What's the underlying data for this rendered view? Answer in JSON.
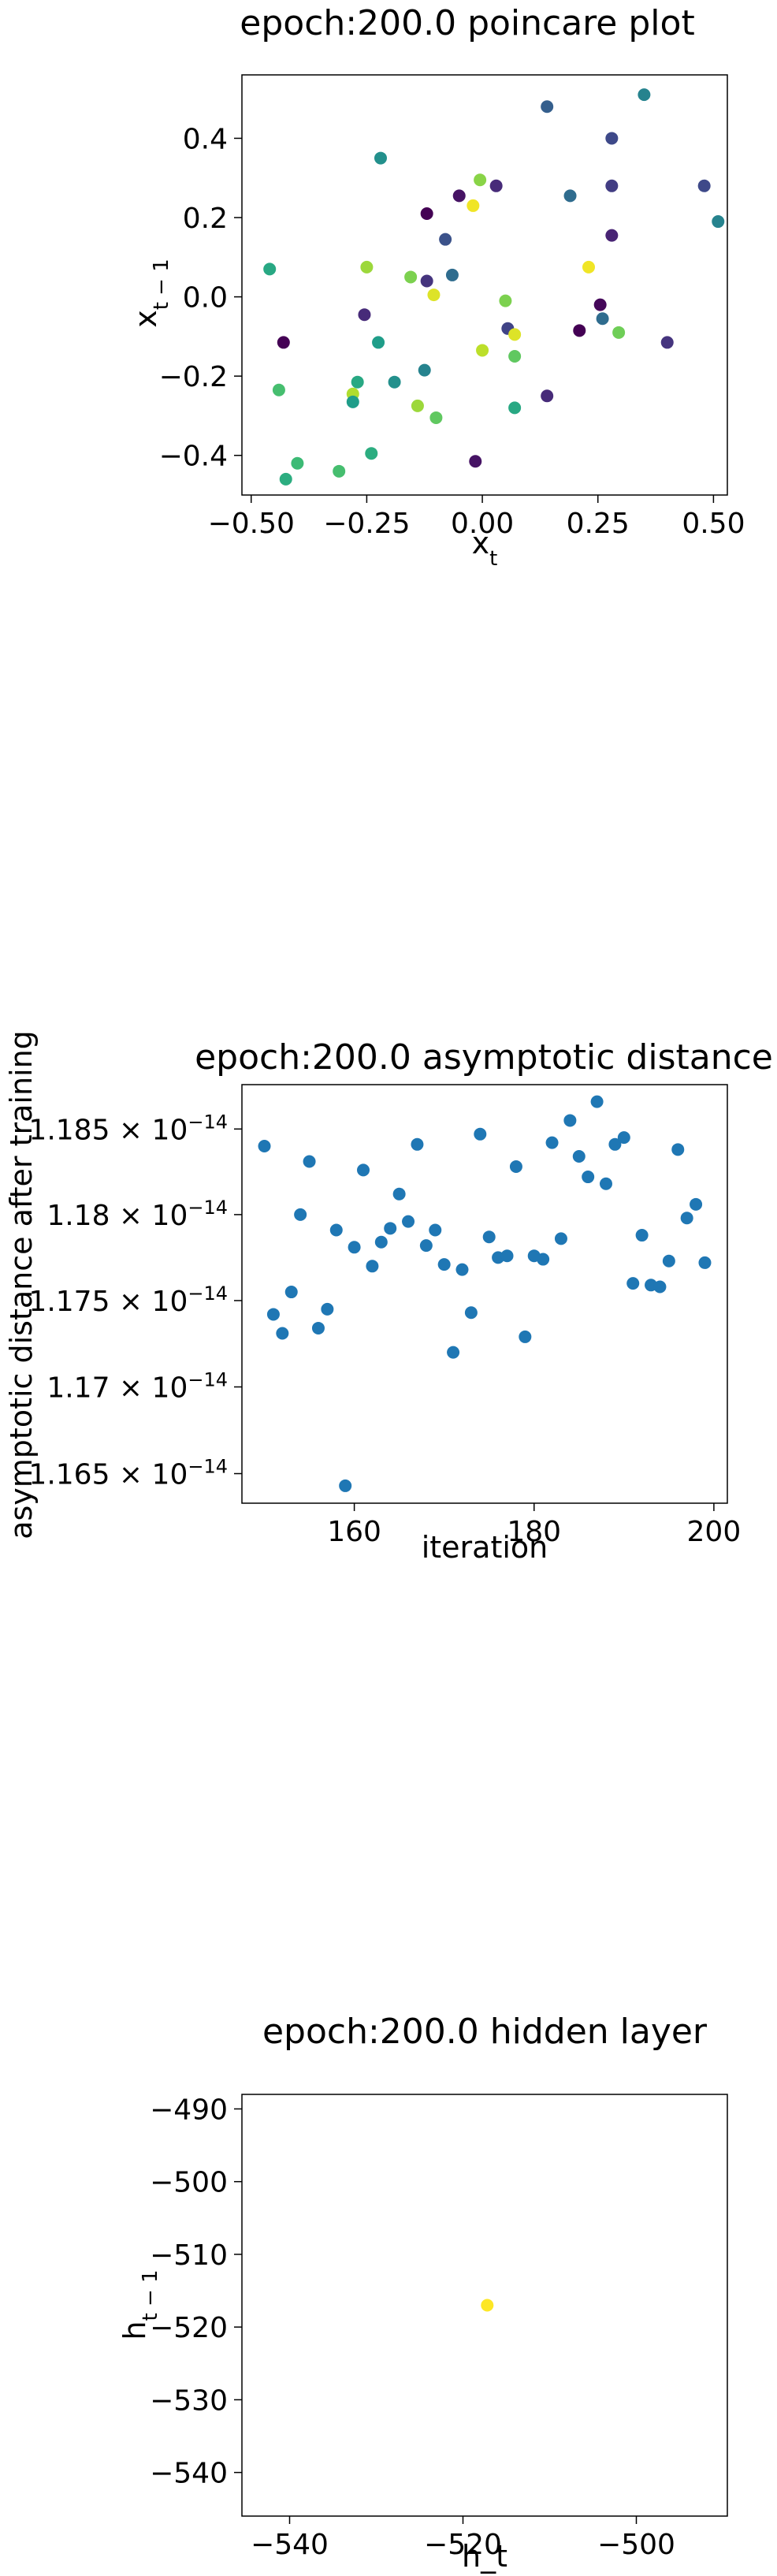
{
  "chart_data": [
    {
      "type": "scatter",
      "title": "epoch:200.0 poincare plot",
      "xlabel": "x_t",
      "ylabel": "x_{t-1}",
      "xlim": [
        -0.52,
        0.53
      ],
      "ylim": [
        -0.5,
        0.56
      ],
      "xticks": [
        -0.5,
        -0.25,
        0.0,
        0.25,
        0.5
      ],
      "xtick_labels": [
        "−0.50",
        "−0.25",
        "0.00",
        "0.25",
        "0.50"
      ],
      "yticks": [
        -0.4,
        -0.2,
        0.0,
        0.2,
        0.4
      ],
      "ytick_labels": [
        "−0.4",
        "−0.2",
        "0.0",
        "0.2",
        "0.4"
      ],
      "colormap": "viridis",
      "points": [
        {
          "x": 0.35,
          "y": 0.51,
          "c": 0.45
        },
        {
          "x": 0.14,
          "y": 0.48,
          "c": 0.3
        },
        {
          "x": 0.28,
          "y": 0.4,
          "c": 0.22
        },
        {
          "x": -0.22,
          "y": 0.35,
          "c": 0.5
        },
        {
          "x": 0.48,
          "y": 0.28,
          "c": 0.22
        },
        {
          "x": 0.03,
          "y": 0.28,
          "c": 0.12
        },
        {
          "x": 0.28,
          "y": 0.28,
          "c": 0.18
        },
        {
          "x": -0.005,
          "y": 0.295,
          "c": 0.82
        },
        {
          "x": -0.05,
          "y": 0.255,
          "c": 0.05
        },
        {
          "x": 0.19,
          "y": 0.255,
          "c": 0.35
        },
        {
          "x": -0.02,
          "y": 0.23,
          "c": 0.98
        },
        {
          "x": -0.12,
          "y": 0.21,
          "c": 0.0
        },
        {
          "x": 0.51,
          "y": 0.19,
          "c": 0.45
        },
        {
          "x": 0.28,
          "y": 0.155,
          "c": 0.1
        },
        {
          "x": -0.08,
          "y": 0.145,
          "c": 0.25
        },
        {
          "x": -0.46,
          "y": 0.07,
          "c": 0.6
        },
        {
          "x": -0.25,
          "y": 0.075,
          "c": 0.85
        },
        {
          "x": 0.23,
          "y": 0.075,
          "c": 0.98
        },
        {
          "x": -0.065,
          "y": 0.055,
          "c": 0.35
        },
        {
          "x": -0.155,
          "y": 0.05,
          "c": 0.8
        },
        {
          "x": -0.12,
          "y": 0.04,
          "c": 0.15
        },
        {
          "x": -0.105,
          "y": 0.005,
          "c": 0.95
        },
        {
          "x": 0.05,
          "y": -0.01,
          "c": 0.8
        },
        {
          "x": 0.255,
          "y": -0.02,
          "c": 0.02
        },
        {
          "x": -0.255,
          "y": -0.045,
          "c": 0.12
        },
        {
          "x": 0.26,
          "y": -0.055,
          "c": 0.35
        },
        {
          "x": 0.055,
          "y": -0.08,
          "c": 0.2
        },
        {
          "x": 0.21,
          "y": -0.085,
          "c": 0.0
        },
        {
          "x": 0.295,
          "y": -0.09,
          "c": 0.78
        },
        {
          "x": 0.07,
          "y": -0.095,
          "c": 0.95
        },
        {
          "x": -0.43,
          "y": -0.115,
          "c": 0.0
        },
        {
          "x": -0.225,
          "y": -0.115,
          "c": 0.55
        },
        {
          "x": 0.4,
          "y": -0.115,
          "c": 0.15
        },
        {
          "x": 0.0,
          "y": -0.135,
          "c": 0.9
        },
        {
          "x": 0.07,
          "y": -0.15,
          "c": 0.75
        },
        {
          "x": -0.125,
          "y": -0.185,
          "c": 0.45
        },
        {
          "x": -0.27,
          "y": -0.215,
          "c": 0.6
        },
        {
          "x": -0.19,
          "y": -0.215,
          "c": 0.5
        },
        {
          "x": -0.44,
          "y": -0.235,
          "c": 0.7
        },
        {
          "x": 0.14,
          "y": -0.25,
          "c": 0.12
        },
        {
          "x": -0.28,
          "y": -0.245,
          "c": 0.88
        },
        {
          "x": -0.28,
          "y": -0.265,
          "c": 0.55
        },
        {
          "x": -0.14,
          "y": -0.275,
          "c": 0.85
        },
        {
          "x": 0.07,
          "y": -0.28,
          "c": 0.6
        },
        {
          "x": -0.1,
          "y": -0.305,
          "c": 0.75
        },
        {
          "x": -0.24,
          "y": -0.395,
          "c": 0.62
        },
        {
          "x": -0.015,
          "y": -0.415,
          "c": 0.05
        },
        {
          "x": -0.4,
          "y": -0.42,
          "c": 0.68
        },
        {
          "x": -0.31,
          "y": -0.44,
          "c": 0.7
        },
        {
          "x": -0.425,
          "y": -0.46,
          "c": 0.62
        }
      ]
    },
    {
      "type": "scatter",
      "title": "epoch:200.0 asymptotic distance",
      "xlabel": "iteration",
      "ylabel": "asymptotic distance after training",
      "yscale": "log",
      "xlim": [
        147.5,
        201.5
      ],
      "ylim": [
        1.1633e-14,
        1.1876e-14
      ],
      "xticks": [
        160,
        180,
        200
      ],
      "xtick_labels": [
        "160",
        "180",
        "200"
      ],
      "yticks": [
        1.165e-14,
        1.17e-14,
        1.175e-14,
        1.18e-14,
        1.185e-14
      ],
      "ytick_mantissas": [
        "1.165",
        "1.17",
        "1.175",
        "1.18",
        "1.185"
      ],
      "ytick_times": "×",
      "ytick_base": "10",
      "ytick_exponent": "−14",
      "color": "#1f77b4",
      "x": [
        150,
        151,
        152,
        153,
        154,
        155,
        156,
        157,
        158,
        159,
        160,
        161,
        162,
        163,
        164,
        165,
        166,
        167,
        168,
        169,
        170,
        171,
        172,
        173,
        174,
        175,
        176,
        177,
        178,
        179,
        180,
        181,
        182,
        183,
        184,
        185,
        186,
        187,
        188,
        189,
        190,
        191,
        192,
        193,
        194,
        195,
        196,
        197,
        198,
        199
      ],
      "y": [
        1.184e-14,
        1.1742e-14,
        1.1731e-14,
        1.1755e-14,
        1.18e-14,
        1.1831e-14,
        1.1734e-14,
        1.1745e-14,
        1.1791e-14,
        1.1643e-14,
        1.1781e-14,
        1.1826e-14,
        1.177e-14,
        1.1784e-14,
        1.1792e-14,
        1.1812e-14,
        1.1796e-14,
        1.1841e-14,
        1.1782e-14,
        1.1791e-14,
        1.1771e-14,
        1.172e-14,
        1.1768e-14,
        1.1743e-14,
        1.1847e-14,
        1.1787e-14,
        1.1775e-14,
        1.1776e-14,
        1.1828e-14,
        1.1729e-14,
        1.1776e-14,
        1.1774e-14,
        1.1842e-14,
        1.1786e-14,
        1.1855e-14,
        1.1834e-14,
        1.1822e-14,
        1.1866e-14,
        1.1818e-14,
        1.1841e-14,
        1.1845e-14,
        1.176e-14,
        1.1788e-14,
        1.1759e-14,
        1.1758e-14,
        1.1773e-14,
        1.1838e-14,
        1.1798e-14,
        1.1806e-14,
        1.1772e-14
      ]
    },
    {
      "type": "scatter",
      "title": "epoch:200.0 hidden layer",
      "xlabel": "h_t",
      "ylabel": "h_{t-1}",
      "xlim": [
        -545.5,
        -489.5
      ],
      "ylim": [
        -546,
        -488
      ],
      "xticks": [
        -540,
        -520,
        -500
      ],
      "xtick_labels": [
        "−540",
        "−520",
        "−500"
      ],
      "yticks": [
        -540,
        -530,
        -520,
        -510,
        -500,
        -490
      ],
      "ytick_labels": [
        "−540",
        "−530",
        "−520",
        "−510",
        "−500",
        "−490"
      ],
      "color": "#fde725",
      "x": [
        -517.2
      ],
      "y": [
        -517.0
      ]
    }
  ]
}
